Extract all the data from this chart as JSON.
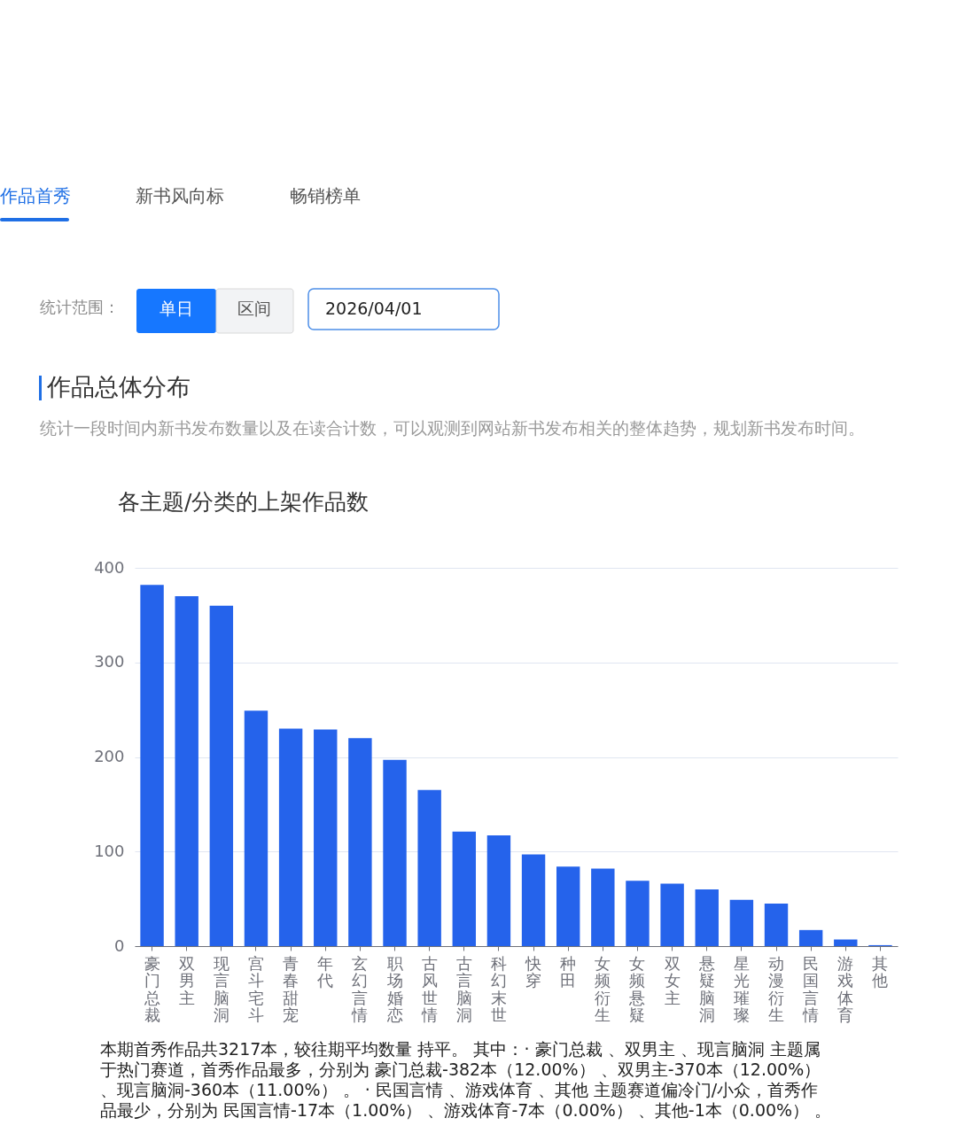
{
  "chart_data": {
    "type": "bar",
    "title": "各主题/分类的上架作品数",
    "categories": [
      "豪门总裁",
      "双男主",
      "现言脑洞",
      "宫斗宅斗",
      "青春甜宠",
      "年代",
      "玄幻言情",
      "职场婚恋",
      "古风世情",
      "古言脑洞",
      "科幻末世",
      "快穿",
      "种田",
      "女频衍生",
      "女频悬疑",
      "双女主",
      "悬疑脑洞",
      "星光璀璨",
      "动漫衍生",
      "民国言情",
      "游戏体育",
      "其他"
    ],
    "values": [
      382,
      370,
      360,
      249,
      230,
      229,
      220,
      197,
      165,
      121,
      117,
      97,
      84,
      82,
      69,
      66,
      60,
      49,
      45,
      17,
      7,
      1
    ],
    "color": "#2563eb",
    "ylim": [
      0,
      400
    ],
    "yticks": [
      0,
      100,
      200,
      300,
      400
    ],
    "grid": "y",
    "annotations": [
      "作品首秀",
      "新书风向标",
      "畅销榜单",
      "统计范围：",
      "单日",
      "区间",
      "2026/04/01",
      "作品总体分布",
      "统计一段时间内新书发布数量以及在读合计数，可以观测到网站新书发布相关的整体趋势，规划新书发布时间。",
      "本期首秀作品共3217本，较往期平均数量 持平。 其中：· 豪门总裁 、双男主 、现言脑洞 主题属",
      "于热门赛道，首秀作品最多，分别为 豪门总裁-382本（12.00%） 、双男主-370本（12.00%）",
      "、现言脑洞-360本（11.00%） 。 · 民国言情 、游戏体育 、其他 主题赛道偏冷门/小众，首秀作",
      "品最少，分别为 民国言情-17本（1.00%） 、游戏体育-7本（0.00%） 、其他-1本（0.00%） 。"
    ]
  }
}
